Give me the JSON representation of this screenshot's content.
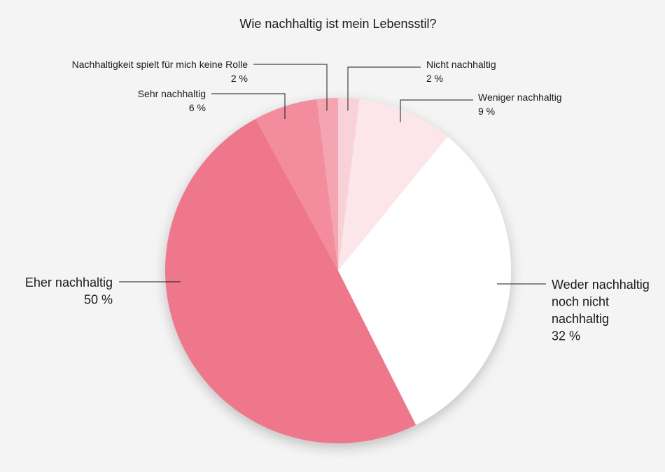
{
  "chart_data": {
    "type": "pie",
    "title": "Wie nachhaltig ist mein Lebensstil?",
    "slices": [
      {
        "name": "Nicht nachhaltig",
        "value": 2,
        "value_label": "2 %",
        "color": "#f9d2d9"
      },
      {
        "name": "Weniger nachhaltig",
        "value": 9,
        "value_label": "9 %",
        "color": "#fde6ea"
      },
      {
        "name": "Weder nachhaltig noch nicht nachhaltig",
        "name_lines": [
          "Weder nachhaltig",
          "noch nicht",
          "nachhaltig"
        ],
        "value": 32,
        "value_label": "32 %",
        "color": "#ffffff"
      },
      {
        "name": "Eher nachhaltig",
        "value": 50,
        "value_label": "50 %",
        "color": "#ef778b"
      },
      {
        "name": "Sehr nachhaltig",
        "value": 6,
        "value_label": "6 %",
        "color": "#f38c9c"
      },
      {
        "name": "Nachhaltigkeit spielt für mich keine Rolle",
        "value": 2,
        "value_label": "2 %",
        "color": "#f5a5b2"
      }
    ]
  }
}
